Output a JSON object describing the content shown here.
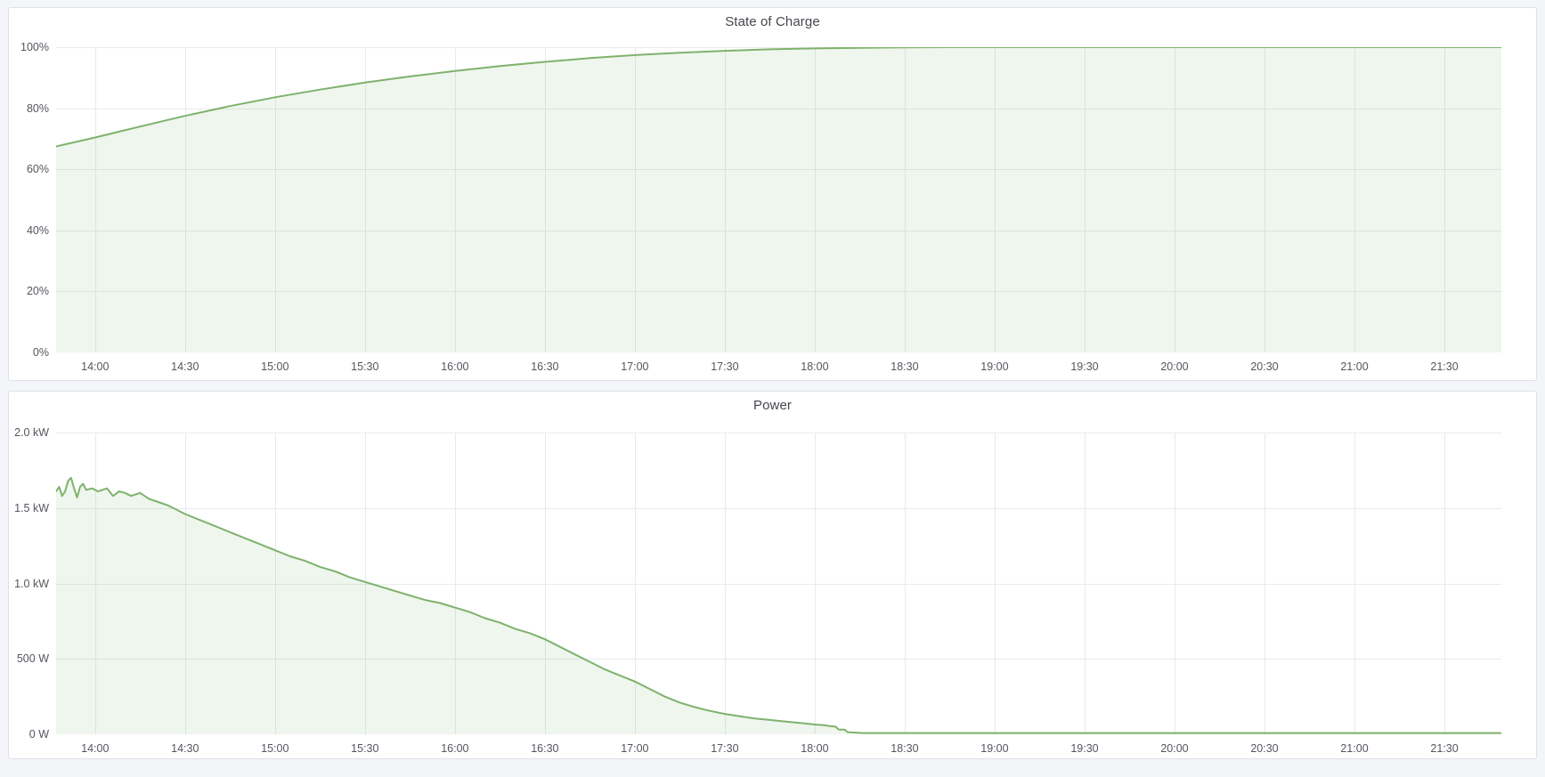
{
  "page": {
    "background": "#f4f5f9",
    "panel_background": "#ffffff",
    "panel_border": "#dde0e6"
  },
  "chart_data": [
    {
      "type": "area",
      "title": "State of Charge",
      "ylabel": "percent",
      "color": "#7EB26D",
      "fill_opacity": 0.12,
      "x_domain": [
        "13:47",
        "21:49"
      ],
      "ylim": [
        0,
        100
      ],
      "grid": true,
      "legend": "none",
      "x_ticks": [
        "14:00",
        "14:30",
        "15:00",
        "15:30",
        "16:00",
        "16:30",
        "17:00",
        "17:30",
        "18:00",
        "18:30",
        "19:00",
        "19:30",
        "20:00",
        "20:30",
        "21:00",
        "21:30"
      ],
      "y_ticks": [
        {
          "value": 0,
          "label": "0%"
        },
        {
          "value": 20,
          "label": "20%"
        },
        {
          "value": 40,
          "label": "40%"
        },
        {
          "value": 60,
          "label": "60%"
        },
        {
          "value": 80,
          "label": "80%"
        },
        {
          "value": 100,
          "label": "100%"
        }
      ],
      "points": [
        [
          "13:47",
          67.5
        ],
        [
          "14:00",
          70.4
        ],
        [
          "14:15",
          74.0
        ],
        [
          "14:30",
          77.5
        ],
        [
          "14:45",
          80.7
        ],
        [
          "15:00",
          83.6
        ],
        [
          "15:15",
          86.1
        ],
        [
          "15:30",
          88.4
        ],
        [
          "15:45",
          90.4
        ],
        [
          "16:00",
          92.2
        ],
        [
          "16:15",
          93.8
        ],
        [
          "16:30",
          95.2
        ],
        [
          "16:45",
          96.4
        ],
        [
          "17:00",
          97.4
        ],
        [
          "17:15",
          98.2
        ],
        [
          "17:30",
          98.8
        ],
        [
          "17:45",
          99.3
        ],
        [
          "18:00",
          99.6
        ],
        [
          "18:15",
          99.8
        ],
        [
          "18:30",
          99.9
        ],
        [
          "18:45",
          100
        ],
        [
          "19:30",
          100
        ],
        [
          "20:30",
          100
        ],
        [
          "21:00",
          100
        ],
        [
          "21:49",
          100
        ]
      ]
    },
    {
      "type": "area",
      "title": "Power",
      "ylabel": "watt",
      "color": "#7EB26D",
      "fill_opacity": 0.12,
      "x_domain": [
        "13:47",
        "21:49"
      ],
      "ylim": [
        0,
        2.0
      ],
      "grid": true,
      "legend": "none",
      "x_ticks": [
        "14:00",
        "14:30",
        "15:00",
        "15:30",
        "16:00",
        "16:30",
        "17:00",
        "17:30",
        "18:00",
        "18:30",
        "19:00",
        "19:30",
        "20:00",
        "20:30",
        "21:00",
        "21:30"
      ],
      "y_ticks": [
        {
          "value": 0,
          "label": "0 W"
        },
        {
          "value": 0.5,
          "label": "500 W"
        },
        {
          "value": 1.0,
          "label": "1.0 kW"
        },
        {
          "value": 1.5,
          "label": "1.5 kW"
        },
        {
          "value": 2.0,
          "label": "2.0 kW"
        }
      ],
      "points": [
        [
          "13:47",
          1.61
        ],
        [
          "13:48",
          1.64
        ],
        [
          "13:49",
          1.58
        ],
        [
          "13:50",
          1.61
        ],
        [
          "13:51",
          1.68
        ],
        [
          "13:52",
          1.7
        ],
        [
          "13:53",
          1.63
        ],
        [
          "13:54",
          1.57
        ],
        [
          "13:55",
          1.64
        ],
        [
          "13:56",
          1.66
        ],
        [
          "13:57",
          1.62
        ],
        [
          "13:59",
          1.63
        ],
        [
          "14:01",
          1.61
        ],
        [
          "14:04",
          1.63
        ],
        [
          "14:06",
          1.58
        ],
        [
          "14:08",
          1.61
        ],
        [
          "14:10",
          1.6
        ],
        [
          "14:12",
          1.58
        ],
        [
          "14:15",
          1.6
        ],
        [
          "14:18",
          1.56
        ],
        [
          "14:21",
          1.54
        ],
        [
          "14:24",
          1.52
        ],
        [
          "14:27",
          1.49
        ],
        [
          "14:30",
          1.46
        ],
        [
          "14:35",
          1.42
        ],
        [
          "14:40",
          1.38
        ],
        [
          "14:45",
          1.34
        ],
        [
          "14:50",
          1.3
        ],
        [
          "14:55",
          1.26
        ],
        [
          "15:00",
          1.22
        ],
        [
          "15:05",
          1.18
        ],
        [
          "15:10",
          1.15
        ],
        [
          "15:15",
          1.11
        ],
        [
          "15:20",
          1.08
        ],
        [
          "15:25",
          1.04
        ],
        [
          "15:30",
          1.01
        ],
        [
          "15:35",
          0.98
        ],
        [
          "15:40",
          0.95
        ],
        [
          "15:45",
          0.92
        ],
        [
          "15:50",
          0.89
        ],
        [
          "15:55",
          0.87
        ],
        [
          "16:00",
          0.84
        ],
        [
          "16:05",
          0.81
        ],
        [
          "16:10",
          0.77
        ],
        [
          "16:15",
          0.74
        ],
        [
          "16:20",
          0.7
        ],
        [
          "16:25",
          0.67
        ],
        [
          "16:30",
          0.63
        ],
        [
          "16:35",
          0.58
        ],
        [
          "16:40",
          0.53
        ],
        [
          "16:45",
          0.48
        ],
        [
          "16:50",
          0.43
        ],
        [
          "16:55",
          0.39
        ],
        [
          "17:00",
          0.35
        ],
        [
          "17:05",
          0.3
        ],
        [
          "17:10",
          0.25
        ],
        [
          "17:15",
          0.21
        ],
        [
          "17:20",
          0.18
        ],
        [
          "17:25",
          0.155
        ],
        [
          "17:30",
          0.135
        ],
        [
          "17:35",
          0.12
        ],
        [
          "17:40",
          0.105
        ],
        [
          "17:45",
          0.095
        ],
        [
          "17:50",
          0.085
        ],
        [
          "17:55",
          0.075
        ],
        [
          "18:00",
          0.065
        ],
        [
          "18:03",
          0.06
        ],
        [
          "18:05",
          0.055
        ],
        [
          "18:07",
          0.05
        ],
        [
          "18:08",
          0.032
        ],
        [
          "18:10",
          0.03
        ],
        [
          "18:11",
          0.014
        ],
        [
          "18:13",
          0.012
        ],
        [
          "18:16",
          0.008
        ],
        [
          "18:30",
          0.008
        ],
        [
          "19:00",
          0.008
        ],
        [
          "19:30",
          0.008
        ],
        [
          "20:00",
          0.008
        ],
        [
          "20:30",
          0.008
        ],
        [
          "21:00",
          0.008
        ],
        [
          "21:30",
          0.008
        ],
        [
          "21:49",
          0.008
        ]
      ]
    }
  ]
}
